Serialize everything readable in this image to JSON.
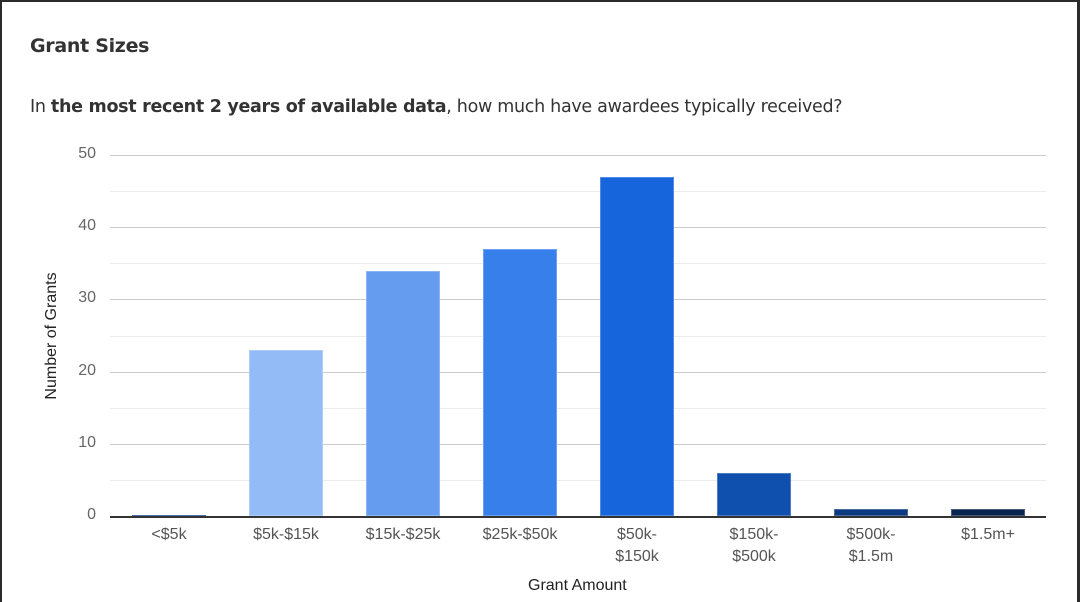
{
  "card": {
    "title": "Grant Sizes",
    "subtitle_prefix": "In ",
    "subtitle_bold": "the most recent 2 years of available data",
    "subtitle_suffix": ", how much have awardees typically received?"
  },
  "chart_data": {
    "type": "bar",
    "title": "",
    "xlabel": "Grant Amount",
    "ylabel": "Number of Grants",
    "ylim": [
      0,
      50
    ],
    "yticks": [
      0,
      10,
      20,
      30,
      40,
      50
    ],
    "grid": true,
    "legend": "none",
    "categories": [
      "<$5k",
      "$5k-$15k",
      "$15k-$25k",
      "$25k-$50k",
      "$50k-$150k",
      "$150k-$500k",
      "$500k-$1.5m",
      "$1.5m+"
    ],
    "category_labels": [
      [
        "<$5k"
      ],
      [
        "$5k-$15k"
      ],
      [
        "$15k-$25k"
      ],
      [
        "$25k-$50k"
      ],
      [
        "$50k-",
        "$150k"
      ],
      [
        "$150k-",
        "$500k"
      ],
      [
        "$500k-",
        "$1.5m"
      ],
      [
        "$1.5m+"
      ]
    ],
    "values": [
      0,
      23,
      34,
      37,
      47,
      6,
      1,
      1
    ],
    "colors": [
      "#4a6fb0",
      "#93bbf5",
      "#659cf0",
      "#3780eb",
      "#1765dd",
      "#0f4fae",
      "#0c3a80",
      "#0a2450"
    ]
  }
}
